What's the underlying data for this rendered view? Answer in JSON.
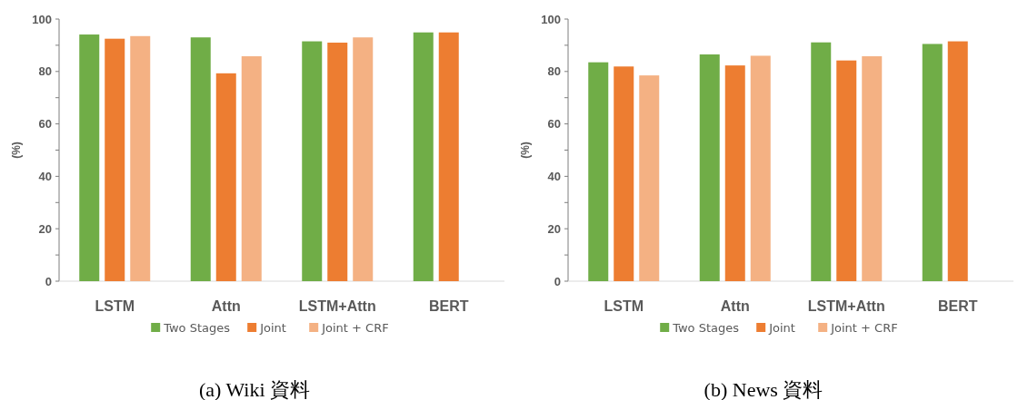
{
  "chart_data": [
    {
      "type": "bar",
      "title": "(a) Wiki 資料",
      "ylabel": "(%)",
      "categories": [
        "LSTM",
        "Attn",
        "LSTM+Attn",
        "BERT"
      ],
      "series": [
        {
          "name": "Two Stages",
          "color": "#70ad47",
          "values": [
            94.1,
            93.0,
            91.5,
            94.9
          ]
        },
        {
          "name": "Joint",
          "color": "#ed7d31",
          "values": [
            92.5,
            79.3,
            91.0,
            94.9
          ]
        },
        {
          "name": "Joint + CRF",
          "color": "#f4b183",
          "values": [
            93.5,
            85.8,
            93.0,
            null
          ]
        }
      ],
      "ylim": [
        0,
        100
      ],
      "yticks": [
        0,
        {
          "value": 10,
          "label": null
        },
        20,
        {
          "value": 30,
          "label": null
        },
        40,
        {
          "value": 50,
          "label": null
        },
        60,
        {
          "value": 70,
          "label": null
        },
        80,
        {
          "value": 90,
          "label": null
        },
        100
      ],
      "legend": "bottom"
    },
    {
      "type": "bar",
      "title": "(b) News 資料",
      "ylabel": "(%)",
      "categories": [
        "LSTM",
        "Attn",
        "LSTM+Attn",
        "BERT"
      ],
      "series": [
        {
          "name": "Two Stages",
          "color": "#70ad47",
          "values": [
            83.5,
            86.5,
            91.1,
            90.5
          ]
        },
        {
          "name": "Joint",
          "color": "#ed7d31",
          "values": [
            81.9,
            82.3,
            84.2,
            91.5
          ]
        },
        {
          "name": "Joint + CRF",
          "color": "#f4b183",
          "values": [
            78.5,
            86.0,
            85.8,
            null
          ]
        }
      ],
      "ylim": [
        0,
        100
      ],
      "yticks": [
        0,
        {
          "value": 10,
          "label": null
        },
        20,
        {
          "value": 30,
          "label": null
        },
        40,
        {
          "value": 50,
          "label": null
        },
        60,
        {
          "value": 70,
          "label": null
        },
        80,
        {
          "value": 90,
          "label": null
        },
        100
      ],
      "legend": "bottom"
    }
  ]
}
